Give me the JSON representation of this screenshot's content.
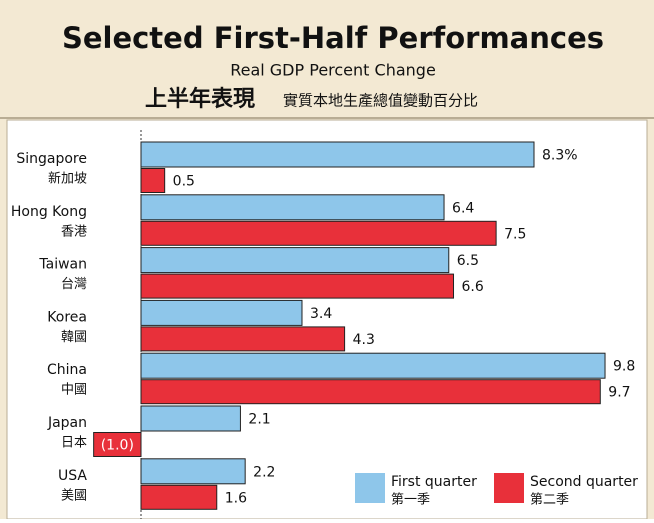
{
  "chart_data": {
    "type": "hbar",
    "title": "Selected First-Half Performances",
    "subtitle": "Real GDP Percent Change",
    "title_zh": "上半年表現",
    "subtitle_zh": "實質本地生產總值變動百分比",
    "categories": [
      "Singapore",
      "Hong Kong",
      "Taiwan",
      "Korea",
      "China",
      "Japan",
      "USA"
    ],
    "categories_zh": [
      "新加坡",
      "香港",
      "台灣",
      "韓國",
      "中國",
      "日本",
      "美國"
    ],
    "series": [
      {
        "name": "First quarter",
        "name_zh": "第一季",
        "color": "#8ec6ea",
        "values": [
          8.3,
          6.4,
          6.5,
          3.4,
          9.8,
          2.1,
          2.2
        ],
        "value_labels": [
          "8.3%",
          "6.4",
          "6.5",
          "3.4",
          "9.8",
          "2.1",
          "2.2"
        ]
      },
      {
        "name": "Second quarter",
        "name_zh": "第二季",
        "color": "#e8303a",
        "values": [
          0.5,
          7.5,
          6.6,
          4.3,
          9.7,
          -1.0,
          1.6
        ],
        "value_labels": [
          "0.5",
          "7.5",
          "6.6",
          "4.3",
          "9.7",
          "(1.0)",
          "1.6"
        ]
      }
    ]
  }
}
